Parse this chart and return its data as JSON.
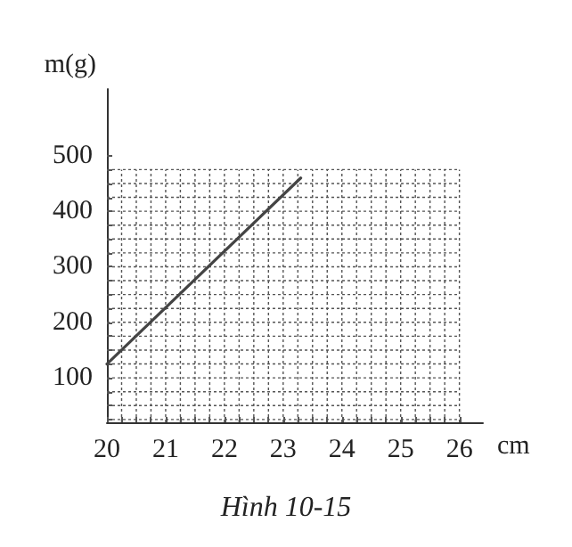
{
  "chart_data": {
    "type": "line",
    "xlabel": "cm",
    "ylabel": "m(g)",
    "annotations": [
      "Hình 10-15"
    ],
    "series": [
      {
        "color": "#444444",
        "x": [
          20,
          23.3
        ],
        "values": [
          125,
          460
        ]
      }
    ],
    "xlim": [
      20,
      26.4
    ],
    "xticks": [
      20,
      {
        "value": 20.25,
        "label": null
      },
      {
        "value": 20.5,
        "label": null
      },
      {
        "value": 20.75,
        "label": null
      },
      21,
      {
        "value": 21.25,
        "label": null
      },
      {
        "value": 21.5,
        "label": null
      },
      {
        "value": 21.75,
        "label": null
      },
      22,
      {
        "value": 22.25,
        "label": null
      },
      {
        "value": 22.5,
        "label": null
      },
      {
        "value": 22.75,
        "label": null
      },
      23,
      {
        "value": 23.25,
        "label": null
      },
      {
        "value": 23.5,
        "label": null
      },
      {
        "value": 23.75,
        "label": null
      },
      24,
      {
        "value": 24.25,
        "label": null
      },
      {
        "value": 24.5,
        "label": null
      },
      {
        "value": 24.75,
        "label": null
      },
      25,
      {
        "value": 25.25,
        "label": null
      },
      {
        "value": 25.5,
        "label": null
      },
      {
        "value": 25.75,
        "label": null
      },
      26
    ],
    "ylim": [
      20,
      620
    ],
    "yticks": [
      {
        "value": 25,
        "label": null
      },
      {
        "value": 50,
        "label": null
      },
      {
        "value": 75,
        "label": null
      },
      100,
      {
        "value": 125,
        "label": null
      },
      {
        "value": 150,
        "label": null
      },
      {
        "value": 175,
        "label": null
      },
      200,
      {
        "value": 225,
        "label": null
      },
      {
        "value": 250,
        "label": null
      },
      {
        "value": 275,
        "label": null
      },
      300,
      {
        "value": 325,
        "label": null
      },
      {
        "value": 350,
        "label": null
      },
      {
        "value": 375,
        "label": null
      },
      400,
      {
        "value": 425,
        "label": null
      },
      {
        "value": 450,
        "label": null
      },
      {
        "value": 475,
        "label": null
      },
      500
    ],
    "grid": true,
    "marker": "none",
    "line_style": "solid"
  }
}
